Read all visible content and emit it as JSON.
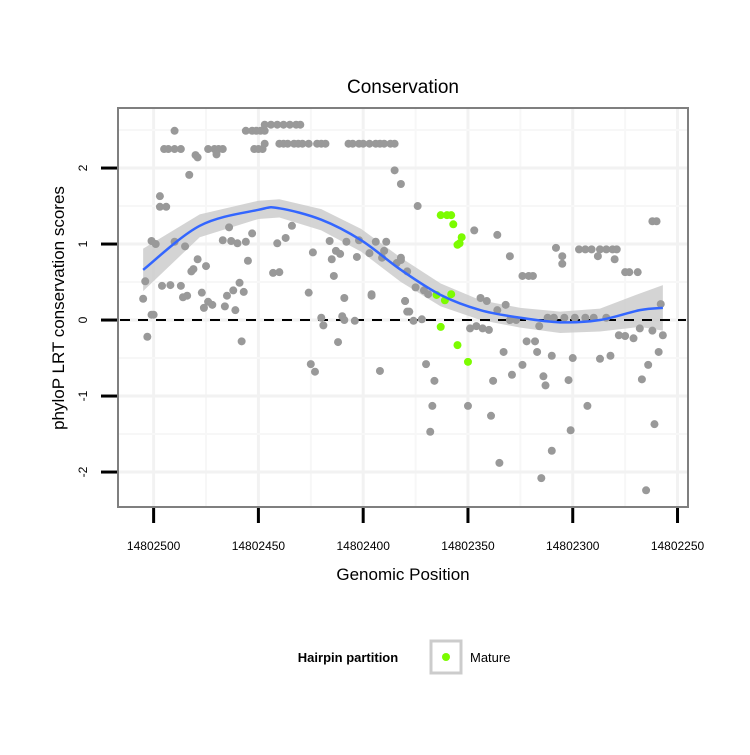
{
  "chart_data": {
    "type": "scatter",
    "title": "Conservation",
    "xlabel": "Genomic Position",
    "ylabel": "phyloP LRT conservation scores",
    "xlim": [
      14802517,
      14802245
    ],
    "x_reversed": true,
    "ylim": [
      -2.46,
      2.79
    ],
    "x_ticks": [
      14802500,
      14802450,
      14802400,
      14802350,
      14802300,
      14802250
    ],
    "x_tick_labels": [
      "14802500",
      "14802450",
      "14802400",
      "14802350",
      "14802300",
      "14802250"
    ],
    "y_ticks": [
      2,
      1,
      0,
      -1,
      -2
    ],
    "y_tick_labels": [
      "2",
      "1",
      "0",
      "-1",
      "-2"
    ],
    "grid": true,
    "reference_line": 0,
    "colors": {
      "other": "#999999",
      "mature": "#7cfc00",
      "smooth": "#3366ff",
      "ribbon": "#cccccc"
    },
    "legend": {
      "title": "Hairpin partition",
      "entries": [
        "Mature"
      ],
      "placement": "bottom"
    },
    "points": [
      [
        14802490,
        2.49
      ],
      [
        14802456,
        2.49
      ],
      [
        14802453,
        2.49
      ],
      [
        14802451,
        2.49
      ],
      [
        14802449,
        2.49
      ],
      [
        14802447,
        2.49
      ],
      [
        14802447,
        2.57
      ],
      [
        14802444,
        2.57
      ],
      [
        14802441,
        2.57
      ],
      [
        14802438,
        2.57
      ],
      [
        14802435,
        2.57
      ],
      [
        14802432,
        2.57
      ],
      [
        14802430,
        2.57
      ],
      [
        14802495,
        2.25
      ],
      [
        14802493,
        2.25
      ],
      [
        14802490,
        2.25
      ],
      [
        14802487,
        2.25
      ],
      [
        14802474,
        2.25
      ],
      [
        14802471,
        2.25
      ],
      [
        14802469,
        2.25
      ],
      [
        14802467,
        2.25
      ],
      [
        14802452,
        2.25
      ],
      [
        14802450,
        2.25
      ],
      [
        14802448,
        2.25
      ],
      [
        14802447,
        2.32
      ],
      [
        14802440,
        2.32
      ],
      [
        14802438,
        2.32
      ],
      [
        14802436,
        2.32
      ],
      [
        14802433,
        2.32
      ],
      [
        14802431,
        2.32
      ],
      [
        14802429,
        2.32
      ],
      [
        14802426,
        2.32
      ],
      [
        14802422,
        2.32
      ],
      [
        14802420,
        2.32
      ],
      [
        14802418,
        2.32
      ],
      [
        14802407,
        2.32
      ],
      [
        14802405,
        2.32
      ],
      [
        14802402,
        2.32
      ],
      [
        14802400,
        2.32
      ],
      [
        14802397,
        2.32
      ],
      [
        14802394,
        2.32
      ],
      [
        14802392,
        2.32
      ],
      [
        14802390,
        2.32
      ],
      [
        14802387,
        2.32
      ],
      [
        14802385,
        2.32
      ],
      [
        14802480,
        2.17
      ],
      [
        14802479,
        2.14
      ],
      [
        14802470,
        2.18
      ],
      [
        14802483,
        1.91
      ],
      [
        14802497,
        1.63
      ],
      [
        14802497,
        1.49
      ],
      [
        14802494,
        1.49
      ],
      [
        14802501,
        1.04
      ],
      [
        14802499,
        1.0
      ],
      [
        14802490,
        1.03
      ],
      [
        14802485,
        0.97
      ],
      [
        14802504,
        0.51
      ],
      [
        14802505,
        0.28
      ],
      [
        14802501,
        0.07
      ],
      [
        14802500,
        0.07
      ],
      [
        14802503,
        -0.22
      ],
      [
        14802496,
        0.45
      ],
      [
        14802492,
        0.46
      ],
      [
        14802487,
        0.45
      ],
      [
        14802486,
        0.3
      ],
      [
        14802484,
        0.32
      ],
      [
        14802482,
        0.64
      ],
      [
        14802481,
        0.67
      ],
      [
        14802479,
        0.8
      ],
      [
        14802475,
        0.71
      ],
      [
        14802477,
        0.36
      ],
      [
        14802476,
        0.16
      ],
      [
        14802474,
        0.24
      ],
      [
        14802472,
        0.2
      ],
      [
        14802466,
        0.18
      ],
      [
        14802465,
        0.32
      ],
      [
        14802462,
        0.39
      ],
      [
        14802459,
        0.49
      ],
      [
        14802457,
        0.37
      ],
      [
        14802461,
        0.13
      ],
      [
        14802458,
        -0.28
      ],
      [
        14802467,
        1.05
      ],
      [
        14802464,
        1.22
      ],
      [
        14802463,
        1.04
      ],
      [
        14802460,
        1.01
      ],
      [
        14802456,
        1.03
      ],
      [
        14802453,
        1.14
      ],
      [
        14802455,
        0.78
      ],
      [
        14802441,
        1.01
      ],
      [
        14802437,
        1.08
      ],
      [
        14802434,
        1.24
      ],
      [
        14802443,
        0.62
      ],
      [
        14802440,
        0.63
      ],
      [
        14802424,
        0.89
      ],
      [
        14802426,
        0.36
      ],
      [
        14802425,
        -0.58
      ],
      [
        14802423,
        -0.68
      ],
      [
        14802416,
        1.04
      ],
      [
        14802413,
        0.91
      ],
      [
        14802411,
        0.87
      ],
      [
        14802415,
        0.8
      ],
      [
        14802414,
        0.58
      ],
      [
        14802409,
        0.29
      ],
      [
        14802408,
        1.03
      ],
      [
        14802402,
        1.05
      ],
      [
        14802403,
        0.83
      ],
      [
        14802397,
        0.88
      ],
      [
        14802394,
        1.03
      ],
      [
        14802389,
        1.03
      ],
      [
        14802391,
        0.82
      ],
      [
        14802390,
        0.91
      ],
      [
        14802382,
        0.79
      ],
      [
        14802384,
        0.75
      ],
      [
        14802396,
        0.34
      ],
      [
        14802396,
        0.32
      ],
      [
        14802420,
        0.03
      ],
      [
        14802419,
        -0.07
      ],
      [
        14802410,
        0.05
      ],
      [
        14802409,
        0.0
      ],
      [
        14802404,
        -0.01
      ],
      [
        14802412,
        -0.29
      ],
      [
        14802392,
        -0.67
      ],
      [
        14802385,
        1.97
      ],
      [
        14802382,
        1.79
      ],
      [
        14802380,
        0.25
      ],
      [
        14802379,
        0.11
      ],
      [
        14802374,
        1.5
      ],
      [
        14802347,
        1.18
      ],
      [
        14802336,
        1.12
      ],
      [
        14802330,
        0.84
      ],
      [
        14802308,
        0.95
      ],
      [
        14802305,
        0.84
      ],
      [
        14802305,
        0.74
      ],
      [
        14802324,
        0.58
      ],
      [
        14802321,
        0.58
      ],
      [
        14802319,
        0.58
      ],
      [
        14802297,
        0.93
      ],
      [
        14802294,
        0.93
      ],
      [
        14802291,
        0.93
      ],
      [
        14802287,
        0.93
      ],
      [
        14802284,
        0.93
      ],
      [
        14802281,
        0.93
      ],
      [
        14802279,
        0.93
      ],
      [
        14802288,
        0.84
      ],
      [
        14802280,
        0.8
      ],
      [
        14802275,
        0.63
      ],
      [
        14802273,
        0.63
      ],
      [
        14802269,
        0.63
      ],
      [
        14802262,
        1.3
      ],
      [
        14802260,
        1.3
      ],
      [
        14802382,
        0.82
      ],
      [
        14802379,
        0.64
      ],
      [
        14802375,
        0.43
      ],
      [
        14802380,
        0.25
      ],
      [
        14802378,
        0.11
      ],
      [
        14802376,
        -0.01
      ],
      [
        14802372,
        0.01
      ],
      [
        14802371,
        0.39
      ],
      [
        14802369,
        0.34
      ],
      [
        14802370,
        -0.58
      ],
      [
        14802366,
        -0.8
      ],
      [
        14802367,
        -1.13
      ],
      [
        14802368,
        -1.47
      ],
      [
        14802350,
        -1.13
      ],
      [
        14802339,
        -1.26
      ],
      [
        14802335,
        -1.88
      ],
      [
        14802338,
        -0.8
      ],
      [
        14802329,
        -0.72
      ],
      [
        14802324,
        -0.59
      ],
      [
        14802333,
        -0.42
      ],
      [
        14802322,
        -0.28
      ],
      [
        14802318,
        -0.28
      ],
      [
        14802317,
        -0.42
      ],
      [
        14802310,
        -0.47
      ],
      [
        14802314,
        -0.74
      ],
      [
        14802313,
        -0.86
      ],
      [
        14802300,
        -0.5
      ],
      [
        14802302,
        -0.79
      ],
      [
        14802301,
        -1.45
      ],
      [
        14802293,
        -1.13
      ],
      [
        14802310,
        -1.72
      ],
      [
        14802315,
        -2.08
      ],
      [
        14802287,
        -0.51
      ],
      [
        14802282,
        -0.47
      ],
      [
        14802267,
        -0.78
      ],
      [
        14802264,
        -0.59
      ],
      [
        14802261,
        -1.37
      ],
      [
        14802265,
        -2.24
      ],
      [
        14802259,
        -0.42
      ],
      [
        14802257,
        -0.2
      ],
      [
        14802262,
        -0.14
      ],
      [
        14802258,
        0.21
      ],
      [
        14802268,
        -0.11
      ],
      [
        14802271,
        -0.24
      ],
      [
        14802278,
        -0.2
      ],
      [
        14802275,
        -0.21
      ],
      [
        14802349,
        -0.11
      ],
      [
        14802346,
        -0.08
      ],
      [
        14802343,
        -0.11
      ],
      [
        14802340,
        -0.13
      ],
      [
        14802330,
        0.0
      ],
      [
        14802327,
        0.0
      ],
      [
        14802316,
        -0.08
      ],
      [
        14802312,
        0.03
      ],
      [
        14802309,
        0.03
      ],
      [
        14802304,
        0.03
      ],
      [
        14802299,
        0.03
      ],
      [
        14802294,
        0.03
      ],
      [
        14802290,
        0.03
      ],
      [
        14802284,
        0.03
      ],
      [
        14802344,
        0.29
      ],
      [
        14802341,
        0.25
      ],
      [
        14802336,
        0.13
      ],
      [
        14802332,
        0.2
      ]
    ],
    "mature_points": [
      [
        14802363,
        1.38
      ],
      [
        14802360,
        1.38
      ],
      [
        14802358,
        1.38
      ],
      [
        14802357,
        1.26
      ],
      [
        14802353,
        1.09
      ],
      [
        14802355,
        0.99
      ],
      [
        14802354,
        1.01
      ],
      [
        14802365,
        0.33
      ],
      [
        14802361,
        0.26
      ],
      [
        14802358,
        0.34
      ],
      [
        14802363,
        -0.09
      ],
      [
        14802355,
        -0.33
      ],
      [
        14802350,
        -0.55
      ]
    ],
    "smooth": {
      "x": [
        14802505,
        14802478,
        14802450,
        14802440,
        14802420,
        14802401,
        14802382,
        14802363,
        14802344,
        14802325,
        14802306,
        14802287,
        14802268,
        14802257
      ],
      "y": [
        0.66,
        1.24,
        1.45,
        1.47,
        1.32,
        1.05,
        0.66,
        0.33,
        0.13,
        0.03,
        -0.03,
        0.0,
        0.13,
        0.16
      ],
      "se": [
        0.28,
        0.15,
        0.12,
        0.12,
        0.14,
        0.15,
        0.16,
        0.15,
        0.13,
        0.13,
        0.14,
        0.15,
        0.22,
        0.3
      ]
    }
  }
}
